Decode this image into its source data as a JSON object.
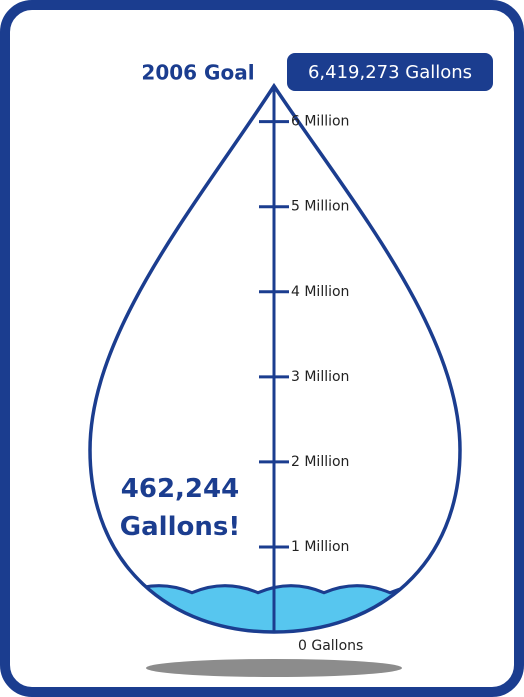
{
  "chart_data": {
    "type": "drop-gauge",
    "title": "2006 Goal",
    "goal": 6419273,
    "goal_label": "6,419,273 Gallons",
    "values": [
      462244
    ],
    "value_labels": [
      "462,244 Gallons!"
    ],
    "ylim": [
      0,
      6419273
    ],
    "yticks": [
      {
        "value": 0,
        "label": "0 Gallons"
      },
      {
        "value": 1000000,
        "label": "1 Million"
      },
      {
        "value": 2000000,
        "label": "2 Million"
      },
      {
        "value": 3000000,
        "label": "3 Million"
      },
      {
        "value": 4000000,
        "label": "4 Million"
      },
      {
        "value": 5000000,
        "label": "5 Million"
      },
      {
        "value": 6000000,
        "label": "6 Million"
      }
    ],
    "color": "#57c6ef",
    "outline_color": "#1b3d8f"
  }
}
